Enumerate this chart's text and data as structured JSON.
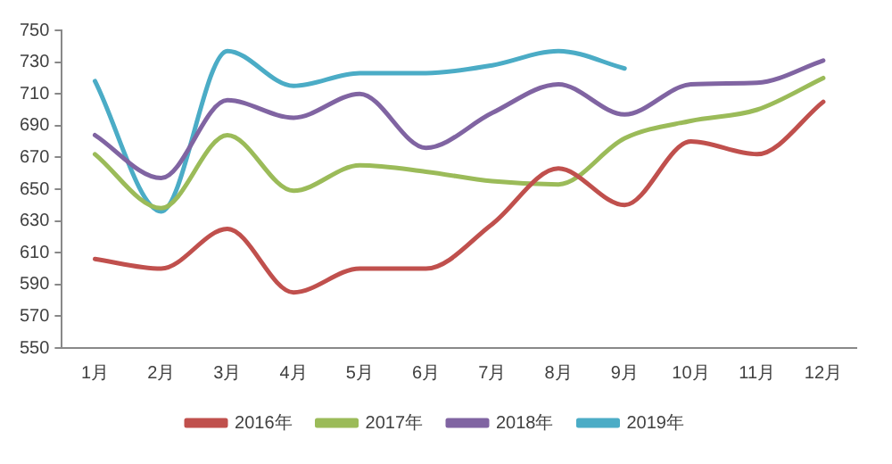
{
  "chart_data": {
    "type": "line",
    "categories": [
      "1月",
      "2月",
      "3月",
      "4月",
      "5月",
      "6月",
      "7月",
      "8月",
      "9月",
      "10月",
      "11月",
      "12月"
    ],
    "series": [
      {
        "name": "2016年",
        "color": "#c0504d",
        "values": [
          606,
          600,
          625,
          585,
          600,
          600,
          628,
          663,
          640,
          680,
          672,
          705
        ]
      },
      {
        "name": "2017年",
        "color": "#9bbb59",
        "values": [
          672,
          638,
          684,
          649,
          665,
          661,
          655,
          653,
          682,
          693,
          700,
          720
        ]
      },
      {
        "name": "2018年",
        "color": "#8064a2",
        "values": [
          684,
          657,
          706,
          695,
          710,
          676,
          698,
          716,
          697,
          716,
          717,
          731
        ]
      },
      {
        "name": "2019年",
        "color": "#4bacc6",
        "values": [
          718,
          636,
          737,
          715,
          723,
          723,
          728,
          737,
          726,
          null,
          null,
          null
        ]
      }
    ],
    "ylim": [
      550,
      750
    ],
    "yticks": [
      550,
      570,
      590,
      610,
      630,
      650,
      670,
      690,
      710,
      730,
      750
    ],
    "grid": false,
    "legend": "bottom",
    "marker": "none",
    "line_style": "solid"
  }
}
